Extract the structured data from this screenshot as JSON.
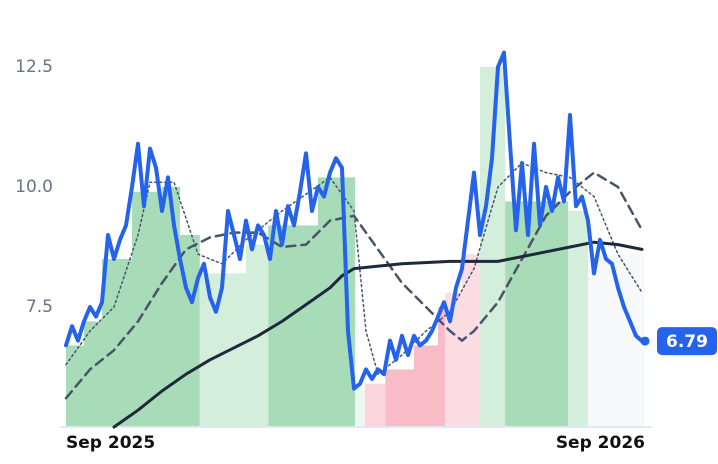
{
  "chart_data": {
    "type": "line",
    "xlim": [
      0,
      96
    ],
    "xticks": [
      {
        "value": 0,
        "label": "Sep 2025"
      },
      {
        "value": 96,
        "label": "Sep 2026"
      }
    ],
    "ylim": [
      5,
      13.3
    ],
    "yticks": [
      7.5,
      {
        "value": 10,
        "label": "10.0"
      },
      12.5
    ],
    "zones": [
      {
        "x0": 0,
        "x1": 3,
        "value": 6.7,
        "color": "#a8dcb9"
      },
      {
        "x0": 3,
        "x1": 6,
        "value": 7.2,
        "color": "#a8dcb9"
      },
      {
        "x0": 6,
        "x1": 11,
        "value": 8.5,
        "color": "#a8dcb9"
      },
      {
        "x0": 11,
        "x1": 16,
        "value": 9.9,
        "color": "#a8dcb9"
      },
      {
        "x0": 16,
        "x1": 19,
        "value": 10.0,
        "color": "#a8dcb9"
      },
      {
        "x0": 19,
        "x1": 22.3,
        "value": 9.0,
        "color": "#a8dcb9"
      },
      {
        "x0": 22.3,
        "x1": 30,
        "value": 8.2,
        "color": "#d3eedb"
      },
      {
        "x0": 30,
        "x1": 33.7,
        "value": 8.8,
        "color": "#d3eedb"
      },
      {
        "x0": 33.7,
        "x1": 42,
        "value": 9.2,
        "color": "#a8dcb9"
      },
      {
        "x0": 42,
        "x1": 48.2,
        "value": 10.2,
        "color": "#a8dcb9"
      },
      {
        "x0": 48.2,
        "x1": 49.8,
        "value": 5.8,
        "color": "#eef7f1"
      },
      {
        "x0": 49.8,
        "x1": 53.2,
        "value": 5.9,
        "color": "#fbd5dc"
      },
      {
        "x0": 53.2,
        "x1": 58,
        "value": 6.2,
        "color": "#f8bcc7"
      },
      {
        "x0": 58,
        "x1": 62,
        "value": 6.7,
        "color": "#f8bcc7"
      },
      {
        "x0": 62,
        "x1": 63.2,
        "value": 7.5,
        "color": "#f8bcc7"
      },
      {
        "x0": 63.2,
        "x1": 66,
        "value": 7.8,
        "color": "#fcdde3"
      },
      {
        "x0": 66,
        "x1": 69,
        "value": 8.6,
        "color": "#fcdde3"
      },
      {
        "x0": 69,
        "x1": 73.2,
        "value": 12.5,
        "color": "#d3eedb"
      },
      {
        "x0": 73.2,
        "x1": 83.7,
        "value": 9.7,
        "color": "#a8dcb9"
      },
      {
        "x0": 83.7,
        "x1": 87,
        "value": 9.5,
        "color": "#d3eedb"
      },
      {
        "x0": 87,
        "x1": 96.5,
        "value": 8.6,
        "color": "#f7f8fa"
      }
    ],
    "series": [
      {
        "color": "#475569",
        "dash": "2,3",
        "width": 1.5,
        "x": [
          0,
          4,
          8,
          12,
          14,
          18,
          22,
          26,
          30,
          36,
          44,
          48,
          50,
          52,
          56,
          60,
          64,
          68,
          72,
          76,
          80,
          84,
          88,
          92,
          96
        ],
        "values": [
          6.3,
          7.0,
          7.5,
          9.0,
          10.1,
          10.1,
          8.6,
          8.4,
          8.9,
          9.5,
          10.2,
          9.5,
          7.0,
          6.1,
          6.5,
          7.0,
          7.4,
          8.3,
          10.0,
          10.5,
          10.3,
          10.2,
          9.8,
          8.6,
          7.8
        ]
      },
      {
        "color": "#475569",
        "dash": "9,6",
        "width": 2.5,
        "x": [
          0,
          4,
          8,
          12,
          16,
          20,
          24,
          28,
          32,
          36,
          40,
          44,
          48,
          52,
          56,
          60,
          64,
          66,
          68,
          72,
          76,
          80,
          84,
          88,
          92,
          96
        ],
        "values": [
          5.6,
          6.2,
          6.6,
          7.2,
          8.0,
          8.7,
          8.95,
          9.05,
          9.05,
          8.75,
          8.8,
          9.3,
          9.4,
          8.7,
          8.0,
          7.5,
          7.0,
          6.8,
          7.0,
          7.6,
          8.5,
          9.4,
          9.9,
          10.3,
          10.0,
          9.1
        ]
      },
      {
        "color": "#1e293b",
        "dash": "none",
        "width": 3,
        "x": [
          8,
          12,
          16,
          20,
          24,
          28,
          32,
          36,
          40,
          44,
          46,
          48,
          56,
          64,
          72,
          76,
          80,
          84,
          88,
          92,
          96
        ],
        "values": [
          5.0,
          5.35,
          5.75,
          6.1,
          6.4,
          6.65,
          6.9,
          7.2,
          7.55,
          7.9,
          8.15,
          8.3,
          8.4,
          8.45,
          8.45,
          8.55,
          8.65,
          8.75,
          8.85,
          8.8,
          8.7
        ]
      },
      {
        "color": "#2563eb",
        "dash": "none",
        "width": 4,
        "values": [
          6.7,
          7.1,
          6.8,
          7.2,
          7.5,
          7.3,
          7.6,
          9.0,
          8.5,
          8.9,
          9.2,
          10.0,
          10.9,
          9.6,
          10.8,
          10.4,
          9.5,
          10.2,
          9.2,
          8.5,
          7.9,
          7.6,
          8.1,
          8.4,
          7.7,
          7.4,
          7.9,
          9.5,
          9.0,
          8.5,
          9.3,
          8.7,
          9.2,
          9.0,
          8.5,
          9.5,
          8.8,
          9.6,
          9.2,
          9.9,
          10.7,
          9.5,
          10.0,
          9.8,
          10.3,
          10.6,
          10.4,
          7.0,
          5.8,
          5.9,
          6.2,
          6.0,
          6.2,
          6.1,
          6.8,
          6.4,
          6.9,
          6.5,
          6.9,
          6.7,
          6.8,
          7.0,
          7.3,
          7.6,
          7.2,
          7.9,
          8.3,
          9.3,
          10.3,
          9.0,
          9.6,
          10.6,
          12.5,
          12.8,
          10.9,
          9.1,
          10.5,
          9.0,
          10.9,
          9.2,
          10.0,
          9.5,
          10.2,
          9.7,
          11.5,
          9.6,
          9.8,
          9.3,
          8.2,
          8.9,
          8.5,
          8.4,
          7.9,
          7.5,
          7.2,
          6.9,
          6.79
        ]
      }
    ]
  }
}
